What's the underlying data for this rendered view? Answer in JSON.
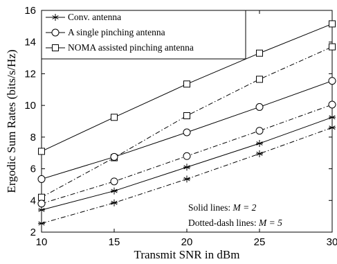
{
  "chart_data": {
    "type": "line",
    "xlabel": "Transmit SNR in dBm",
    "ylabel": "Ergodic Sum Rates (bits/s/Hz)",
    "xlim": [
      10,
      30
    ],
    "ylim": [
      2,
      16
    ],
    "xticks": [
      10,
      15,
      20,
      25,
      30
    ],
    "yticks": [
      2,
      4,
      6,
      8,
      10,
      12,
      14,
      16
    ],
    "grid": false,
    "legend_position": "top-left",
    "legend": [
      {
        "label": "Conv. antenna",
        "marker": "asterisk"
      },
      {
        "label": "A single pinching antenna",
        "marker": "circle"
      },
      {
        "label": "NOMA assisted pinching antenna",
        "marker": "square"
      }
    ],
    "notes": {
      "solid_prefix": "Solid lines: ",
      "solid_value": "M = 2",
      "dash_prefix": "Dotted-dash lines: ",
      "dash_value": "M = 5"
    },
    "x": [
      10,
      15,
      20,
      25,
      30
    ],
    "series": [
      {
        "marker": "square",
        "line_style": "solid",
        "values": [
          7.1,
          9.25,
          11.35,
          13.3,
          15.15
        ]
      },
      {
        "marker": "square",
        "line_style": "dashdot",
        "values": [
          4.2,
          6.7,
          9.35,
          11.65,
          13.7
        ]
      },
      {
        "marker": "circle",
        "line_style": "solid",
        "values": [
          5.35,
          6.75,
          8.3,
          9.9,
          11.55
        ]
      },
      {
        "marker": "circle",
        "line_style": "dashdot",
        "values": [
          3.8,
          5.2,
          6.8,
          8.4,
          10.05
        ]
      },
      {
        "marker": "asterisk",
        "line_style": "solid",
        "values": [
          3.4,
          4.6,
          6.1,
          7.6,
          9.25
        ]
      },
      {
        "marker": "asterisk",
        "line_style": "dashdot",
        "values": [
          2.55,
          3.85,
          5.35,
          6.95,
          8.6
        ]
      }
    ]
  }
}
